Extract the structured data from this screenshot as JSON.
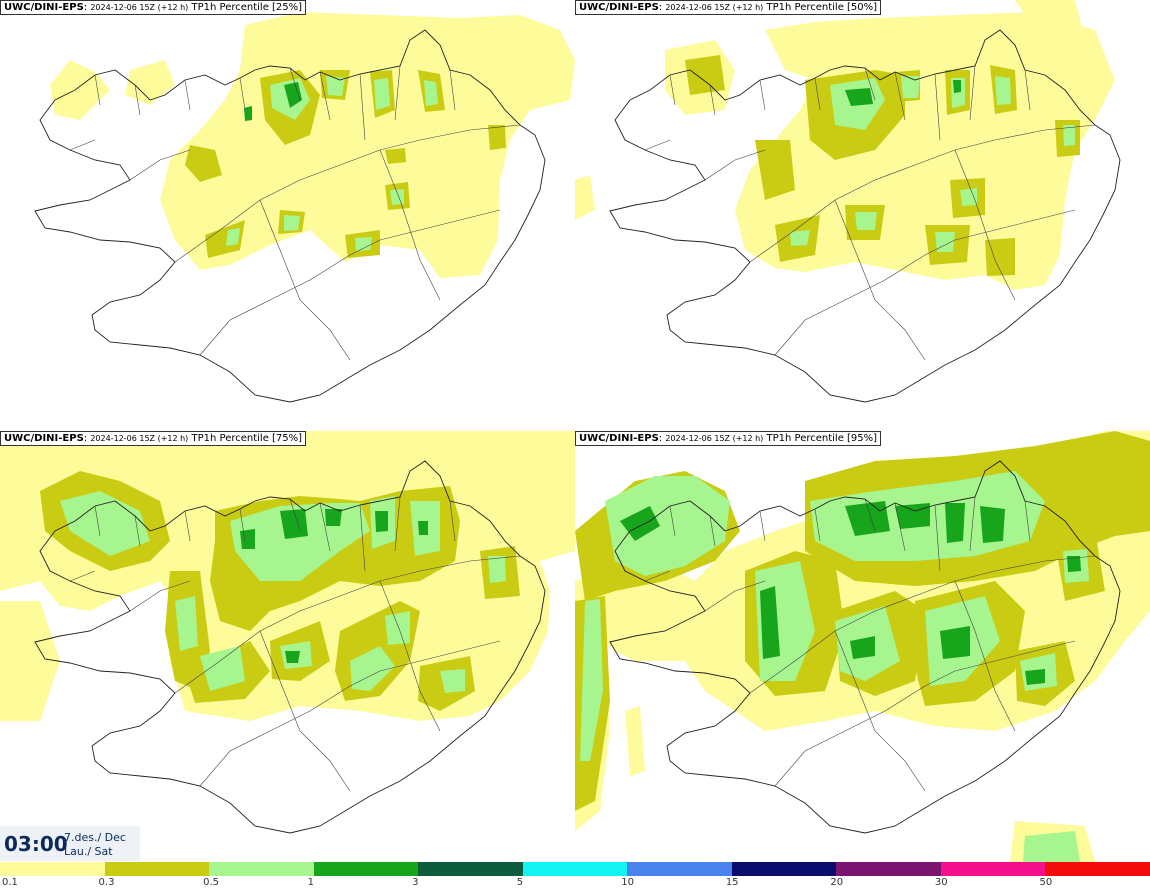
{
  "panels": [
    {
      "model": "UWC/DINI-EPS",
      "run": "2024-12-06 15Z (+12 h)",
      "product": "TP1h Percentile [25%]"
    },
    {
      "model": "UWC/DINI-EPS",
      "run": "2024-12-06 15Z (+12 h)",
      "product": "TP1h Percentile [50%]"
    },
    {
      "model": "UWC/DINI-EPS",
      "run": "2024-12-06 15Z (+12 h)",
      "product": "TP1h Percentile [75%]"
    },
    {
      "model": "UWC/DINI-EPS",
      "run": "2024-12-06 15Z (+12 h)",
      "product": "TP1h Percentile [95%]"
    }
  ],
  "time": {
    "clock": "03:00",
    "date_line1": "7.des./ Dec",
    "date_line2": "Lau./ Sat"
  },
  "legend": {
    "labels": [
      "0.1",
      "0.3",
      "0.5",
      "1",
      "3",
      "5",
      "10",
      "15",
      "20",
      "30",
      "50"
    ],
    "colors": [
      "#fdfb9a",
      "#c9cc12",
      "#a6f58e",
      "#16a51b",
      "#0c5c3e",
      "#14f2f2",
      "#4a82ee",
      "#0a0d6e",
      "#7a1470",
      "#f2108c",
      "#f20c0c"
    ]
  }
}
